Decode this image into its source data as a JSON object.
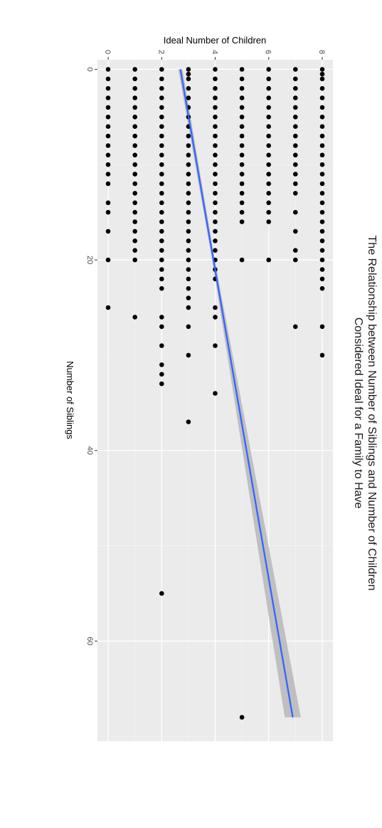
{
  "chart_data": {
    "type": "scatter",
    "title": "The Relationship between Number of Siblings and Number of Children Considered Ideal for a Family to Have",
    "title_lines": [
      "The Relationship between Number of Siblings and Number of Children",
      "Considered Ideal for a Family to Have"
    ],
    "xlabel": "Number of Siblings",
    "ylabel": "Ideal Number of Children",
    "xlim": [
      -1,
      70.5
    ],
    "ylim": [
      -0.4,
      8.4
    ],
    "x_ticks": [
      0,
      20,
      40,
      60
    ],
    "y_ticks": [
      0,
      2,
      4,
      6,
      8
    ],
    "grid": true,
    "rotation": "plot rotated 90 degrees clockwise",
    "series": [
      {
        "type": "points",
        "color": "#000000",
        "groups": [
          {
            "y": 0,
            "x": [
              0,
              1,
              2,
              3,
              4,
              5,
              6,
              7,
              8,
              9,
              10,
              11,
              12,
              14,
              15,
              17,
              20,
              25
            ]
          },
          {
            "y": 1,
            "x": [
              0,
              1,
              2,
              3,
              4,
              5,
              6,
              7,
              8,
              9,
              10,
              11,
              12,
              13,
              14,
              15,
              16,
              17,
              18,
              19,
              20,
              26
            ]
          },
          {
            "y": 2,
            "x": [
              0,
              1,
              2,
              3,
              4,
              5,
              6,
              7,
              8,
              9,
              10,
              11,
              12,
              13,
              14,
              15,
              16,
              17,
              18,
              19,
              20,
              21,
              22,
              23,
              26,
              27,
              29,
              31,
              32,
              33,
              55
            ]
          },
          {
            "y": 3,
            "x": [
              0,
              0.5,
              1,
              2,
              3,
              4,
              5,
              6,
              7,
              8,
              9,
              10,
              11,
              12,
              13,
              14,
              15,
              16,
              17,
              18,
              19,
              20,
              21,
              22,
              23,
              24,
              25,
              27,
              30,
              37
            ]
          },
          {
            "y": 4,
            "x": [
              0,
              1,
              2,
              3,
              4,
              5,
              6,
              7,
              8,
              9,
              10,
              11,
              12,
              13,
              14,
              15,
              16,
              17,
              18,
              19,
              20,
              21,
              22,
              25,
              26,
              29,
              34
            ]
          },
          {
            "y": 5,
            "x": [
              0,
              1,
              2,
              3,
              4,
              5,
              6,
              7,
              8,
              9,
              10,
              11,
              12,
              13,
              14,
              15,
              16,
              20,
              68
            ]
          },
          {
            "y": 6,
            "x": [
              0,
              1,
              2,
              3,
              4,
              5,
              6,
              7,
              8,
              9,
              10,
              11,
              12,
              13,
              14,
              15,
              16,
              20
            ]
          },
          {
            "y": 7,
            "x": [
              0,
              1,
              2,
              3,
              4,
              5,
              6,
              7,
              8,
              9,
              10,
              11,
              12,
              13,
              15,
              17,
              19,
              20,
              27
            ]
          },
          {
            "y": 8,
            "x": [
              0,
              0.5,
              1,
              2,
              3,
              4,
              5,
              6,
              7,
              8,
              9,
              10,
              11,
              12,
              13,
              14,
              15,
              16,
              17,
              18,
              19,
              20,
              21,
              22,
              23,
              27,
              30
            ]
          }
        ]
      },
      {
        "type": "smooth",
        "method": "linear",
        "color": "#3366ff",
        "band_color": "#bdbdbd",
        "fit": [
          {
            "x": 0,
            "y": 2.7
          },
          {
            "x": 68,
            "y": 6.9
          }
        ],
        "band_halfwidth": [
          {
            "x": 0,
            "y": 0.08
          },
          {
            "x": 20,
            "y": 0.05
          },
          {
            "x": 68,
            "y": 0.3
          }
        ]
      }
    ]
  }
}
